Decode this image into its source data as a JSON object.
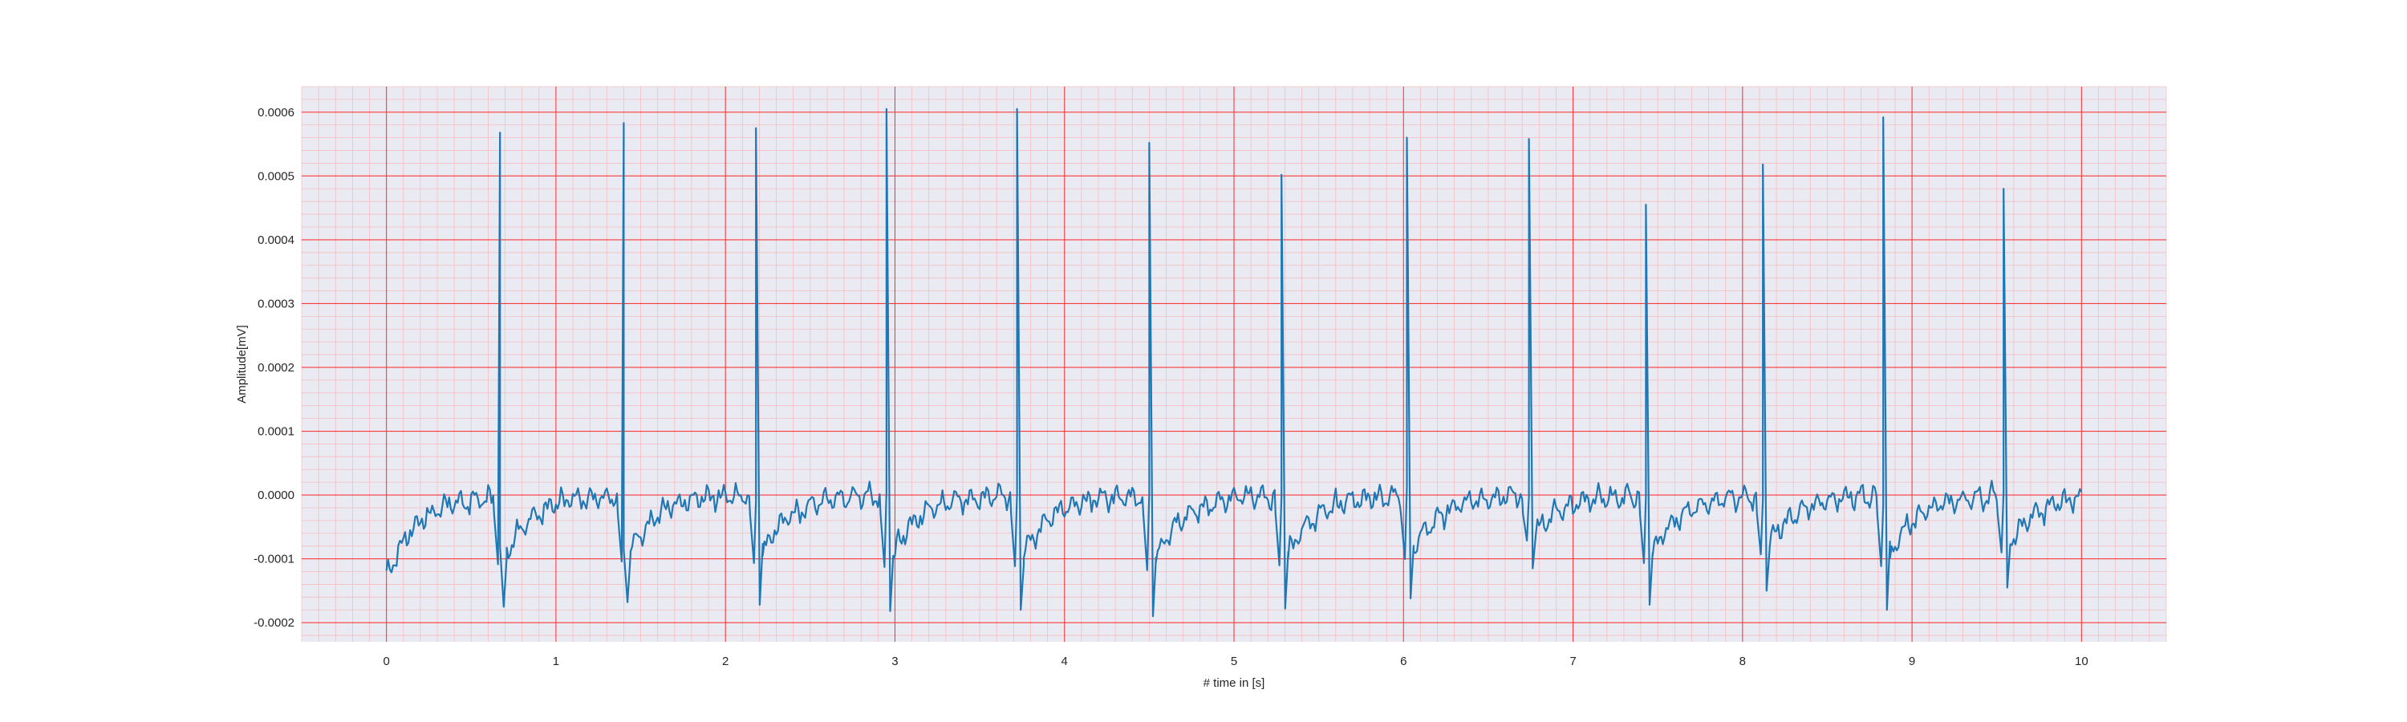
{
  "chart_data": {
    "type": "line",
    "title": "",
    "xlabel": "# time in [s]",
    "ylabel": "Amplitude[mV]",
    "xlim": [
      -0.5,
      10.5
    ],
    "ylim": [
      -0.00023,
      0.00064
    ],
    "x_ticks": [
      0,
      1,
      2,
      3,
      4,
      5,
      6,
      7,
      8,
      9,
      10
    ],
    "x_tick_labels": [
      "0",
      "1",
      "2",
      "3",
      "4",
      "5",
      "6",
      "7",
      "8",
      "9",
      "10"
    ],
    "y_ticks": [
      -0.0002,
      -0.0001,
      0.0,
      0.0001,
      0.0002,
      0.0003,
      0.0004,
      0.0005,
      0.0006
    ],
    "y_tick_labels": [
      "-0.0002",
      "-0.0001",
      "0.0000",
      "0.0001",
      "0.0002",
      "0.0003",
      "0.0004",
      "0.0005",
      "0.0006"
    ],
    "grid": true,
    "major_grid_color": "#ff0000",
    "minor_grid_color": "#ff9999",
    "plot_background": "#eaeaf2",
    "series": [
      {
        "color": "#1f77b4",
        "r_peaks": [
          {
            "t": 0.67,
            "peak": 0.000568,
            "trough": -0.000175
          },
          {
            "t": 1.4,
            "peak": 0.000583,
            "trough": -0.000168
          },
          {
            "t": 2.18,
            "peak": 0.000575,
            "trough": -0.000172
          },
          {
            "t": 2.95,
            "peak": 0.000605,
            "trough": -0.000182
          },
          {
            "t": 3.72,
            "peak": 0.000605,
            "trough": -0.00018
          },
          {
            "t": 4.5,
            "peak": 0.000552,
            "trough": -0.00019
          },
          {
            "t": 5.28,
            "peak": 0.000502,
            "trough": -0.000178
          },
          {
            "t": 6.02,
            "peak": 0.00056,
            "trough": -0.000162
          },
          {
            "t": 6.74,
            "peak": 0.000558,
            "trough": -0.000115
          },
          {
            "t": 7.43,
            "peak": 0.000455,
            "trough": -0.000172
          },
          {
            "t": 8.12,
            "peak": 0.000518,
            "trough": -0.00015
          },
          {
            "t": 8.83,
            "peak": 0.000592,
            "trough": -0.00018
          },
          {
            "t": 9.54,
            "peak": 0.00048,
            "trough": -0.000145
          }
        ],
        "t_start": 0.0,
        "t_end": 10.0,
        "start_value": -0.00013,
        "end_value": 5e-06,
        "baseline_noise_amplitude": 2e-05
      }
    ]
  }
}
